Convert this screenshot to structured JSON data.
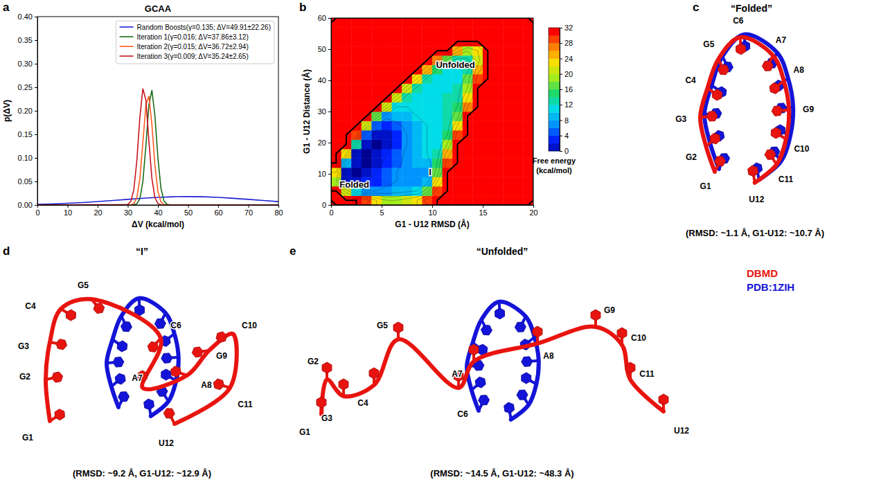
{
  "chart_data": [
    {
      "type": "line",
      "panel": "a",
      "title": "GCAA",
      "x_label": "ΔV (kcal/mol)",
      "y_label": "p(ΔV)",
      "xlim": [
        0,
        80
      ],
      "xticks": [
        0,
        10,
        20,
        30,
        40,
        50,
        60,
        70,
        80
      ],
      "ylim": [
        0,
        0.4
      ],
      "yticks": [
        {
          "value": 0,
          "label": "0.00"
        },
        {
          "value": 0.05,
          "label": "0.05"
        },
        {
          "value": 0.1,
          "label": "0.10"
        },
        {
          "value": 0.15,
          "label": "0.15"
        },
        {
          "value": 0.2,
          "label": "0.20"
        },
        {
          "value": 0.25,
          "label": "0.25"
        },
        {
          "value": 0.3,
          "label": "0.30"
        },
        {
          "value": 0.35,
          "label": "0.35"
        },
        {
          "value": 0.4,
          "label": "0.40"
        }
      ],
      "legend": "upper right",
      "series": [
        {
          "name": "Random Boosts(γ=0.135; ΔV=49.91±22.26)",
          "color": "#1f1fd6",
          "x": [
            0,
            5,
            10,
            15,
            20,
            25,
            30,
            35,
            40,
            45,
            50,
            55,
            60,
            65,
            70,
            75,
            80
          ],
          "values": [
            0.0015,
            0.0023,
            0.0036,
            0.0052,
            0.0073,
            0.0096,
            0.012,
            0.0143,
            0.0162,
            0.0175,
            0.0179,
            0.0175,
            0.0162,
            0.0142,
            0.0119,
            0.0095,
            0.0072
          ]
        },
        {
          "name": "Iteration 1(γ=0.016; ΔV=37.86±3.12)",
          "color": "#1a6b1a",
          "x": [
            0,
            30,
            31,
            32,
            33,
            34,
            35,
            36,
            37,
            38,
            39,
            40,
            41,
            42,
            43,
            44,
            80
          ],
          "values": [
            0,
            0,
            0,
            0.0003,
            0.0024,
            0.0134,
            0.0496,
            0.1246,
            0.212,
            0.244,
            0.1901,
            0.1002,
            0.0357,
            0.0086,
            0.0014,
            0.0002,
            0
          ]
        },
        {
          "name": "Iteration 2(γ=0.015; ΔV=36.72±2.94)",
          "color": "#ff5a1f",
          "x": [
            0,
            30,
            31,
            32,
            33,
            34,
            35,
            36,
            37,
            38,
            39,
            40,
            41,
            42,
            43,
            44,
            80
          ],
          "values": [
            0,
            0,
            0.0004,
            0.003,
            0.0158,
            0.0554,
            0.1318,
            0.2124,
            0.2314,
            0.1707,
            0.0851,
            0.0288,
            0.0066,
            0.001,
            0.0001,
            0,
            0
          ]
        },
        {
          "name": "Iteration 3(γ=0.009; ΔV=35.24±2.65)",
          "color": "#c8141e",
          "x": [
            0,
            30,
            31,
            32,
            33,
            34,
            35,
            36,
            37,
            38,
            39,
            40,
            41,
            42,
            43,
            44,
            80
          ],
          "values": [
            0,
            0.0012,
            0.0075,
            0.0322,
            0.0938,
            0.1852,
            0.2472,
            0.2233,
            0.1365,
            0.0564,
            0.0158,
            0.003,
            0.0004,
            0,
            0,
            0,
            0
          ]
        }
      ]
    },
    {
      "type": "contour",
      "panel": "b",
      "x_label": "G1 - U12 RMSD (Å)",
      "y_label": "G1 - U12 Distance (Å)",
      "xlim": [
        0,
        20
      ],
      "xticks": [
        0,
        5,
        10,
        15,
        20
      ],
      "ylim": [
        0,
        60
      ],
      "yticks": [
        0,
        10,
        20,
        30,
        40,
        50,
        60
      ],
      "x": [
        0.5,
        1.5,
        2.5,
        3.5,
        4.5,
        5.5,
        6.5,
        7.5,
        8.5,
        9.5,
        10.5,
        11.5,
        12.5,
        13.5,
        14.5,
        15.5,
        16.5,
        17.5,
        18.5,
        19.5
      ],
      "y": [
        1.5,
        4.5,
        7.5,
        10.5,
        13.5,
        16.5,
        19.5,
        22.5,
        25.5,
        28.5,
        31.5,
        34.5,
        37.5,
        40.5,
        43.5,
        46.5,
        49.5,
        52.5,
        55.5,
        58.5
      ],
      "z": [
        [
          32,
          32,
          32,
          30,
          24,
          20,
          20,
          22,
          24,
          30,
          32,
          32,
          32,
          32,
          32,
          32,
          32,
          32,
          32,
          32
        ],
        [
          32,
          22,
          12,
          8,
          8,
          9,
          10,
          11,
          12,
          18,
          30,
          32,
          32,
          32,
          32,
          32,
          32,
          32,
          32,
          32
        ],
        [
          20,
          2,
          3,
          4,
          5,
          7,
          8,
          9,
          9,
          10,
          24,
          32,
          32,
          32,
          32,
          32,
          32,
          32,
          32,
          32
        ],
        [
          24,
          3,
          1,
          2,
          4,
          6,
          8,
          9,
          8,
          8,
          18,
          32,
          32,
          32,
          32,
          32,
          32,
          32,
          32,
          32
        ],
        [
          32,
          10,
          2,
          1,
          3,
          5,
          7,
          9,
          10,
          10,
          16,
          30,
          32,
          32,
          32,
          32,
          32,
          32,
          32,
          32
        ],
        [
          32,
          24,
          3,
          1,
          2,
          4,
          6,
          9,
          11,
          12,
          14,
          26,
          32,
          32,
          32,
          32,
          32,
          32,
          32,
          32
        ],
        [
          32,
          32,
          14,
          2,
          1,
          3,
          5,
          8,
          11,
          12,
          13,
          20,
          32,
          32,
          32,
          32,
          32,
          32,
          32,
          32
        ],
        [
          32,
          32,
          30,
          6,
          2,
          3,
          5,
          8,
          11,
          12,
          13,
          16,
          30,
          32,
          32,
          32,
          32,
          32,
          32,
          32
        ],
        [
          32,
          32,
          32,
          22,
          6,
          5,
          7,
          9,
          11,
          12,
          13,
          14,
          24,
          32,
          32,
          32,
          32,
          32,
          32,
          32
        ],
        [
          32,
          32,
          32,
          32,
          18,
          9,
          10,
          11,
          12,
          12,
          13,
          14,
          18,
          32,
          32,
          32,
          32,
          32,
          32,
          32
        ],
        [
          32,
          32,
          32,
          32,
          32,
          22,
          12,
          12,
          13,
          13,
          13,
          14,
          16,
          28,
          32,
          32,
          32,
          32,
          32,
          32
        ],
        [
          32,
          32,
          32,
          32,
          32,
          32,
          22,
          14,
          13,
          13,
          13,
          14,
          15,
          24,
          32,
          32,
          32,
          32,
          32,
          32
        ],
        [
          32,
          32,
          32,
          32,
          32,
          32,
          32,
          22,
          15,
          13,
          12,
          13,
          14,
          20,
          32,
          32,
          32,
          32,
          32,
          32
        ],
        [
          32,
          32,
          32,
          32,
          32,
          32,
          32,
          32,
          24,
          15,
          13,
          12,
          13,
          18,
          30,
          32,
          32,
          32,
          32,
          32
        ],
        [
          32,
          32,
          32,
          32,
          32,
          32,
          32,
          32,
          32,
          26,
          16,
          13,
          12,
          15,
          26,
          32,
          32,
          32,
          32,
          32
        ],
        [
          32,
          32,
          32,
          32,
          32,
          32,
          32,
          32,
          32,
          32,
          28,
          18,
          14,
          15,
          22,
          32,
          32,
          32,
          32,
          32
        ],
        [
          32,
          32,
          32,
          32,
          32,
          32,
          32,
          32,
          32,
          32,
          32,
          32,
          26,
          20,
          24,
          32,
          32,
          32,
          32,
          32
        ],
        [
          32,
          32,
          32,
          32,
          32,
          32,
          32,
          32,
          32,
          32,
          32,
          32,
          32,
          32,
          32,
          32,
          32,
          32,
          32,
          32
        ],
        [
          32,
          32,
          32,
          32,
          32,
          32,
          32,
          32,
          32,
          32,
          32,
          32,
          32,
          32,
          32,
          32,
          32,
          32,
          32,
          32
        ],
        [
          32,
          32,
          32,
          32,
          32,
          32,
          32,
          32,
          32,
          32,
          32,
          32,
          32,
          32,
          32,
          32,
          32,
          32,
          32,
          32
        ]
      ],
      "colorbar": {
        "lim": [
          0,
          32
        ],
        "ticks": [
          0,
          4,
          8,
          12,
          16,
          20,
          24,
          28,
          32
        ],
        "label": "Free energy (kcal/mol)"
      },
      "annotations": [
        {
          "text": "Folded",
          "x": 2.3,
          "y": 5.5
        },
        {
          "text": "I",
          "x": 9.8,
          "y": 9.5
        },
        {
          "text": "Unfolded",
          "x": 12.3,
          "y": 44
        }
      ]
    }
  ],
  "structures": [
    {
      "panel": "c",
      "title": "“Folded”",
      "caption": "(RMSD: ~1.1 Å, G1-U12: ~10.7 Å)",
      "residues": [
        "G1",
        "G2",
        "G3",
        "C4",
        "G5",
        "C6",
        "A7",
        "A8",
        "G9",
        "C10",
        "C11",
        "U12"
      ]
    },
    {
      "panel": "d",
      "title": "“I”",
      "caption": "(RMSD: ~9.2 Å, G1-U12: ~12.9 Å)",
      "residues": [
        "G1",
        "G2",
        "G3",
        "C4",
        "G5",
        "C6",
        "A7",
        "A8",
        "G9",
        "C10",
        "C11",
        "U12"
      ]
    },
    {
      "panel": "e",
      "title": "“Unfolded”",
      "caption": "(RMSD: ~14.5 Å, G1-U12: ~48.3 Å)",
      "residues": [
        "G1",
        "G2",
        "G3",
        "C4",
        "G5",
        "C6",
        "A7",
        "A8",
        "G9",
        "C10",
        "C11",
        "U12"
      ]
    }
  ],
  "structure_legend": [
    {
      "name": "DBMD",
      "color": "#e8140f"
    },
    {
      "name": "PDB:1ZIH",
      "color": "#1414d8"
    }
  ]
}
